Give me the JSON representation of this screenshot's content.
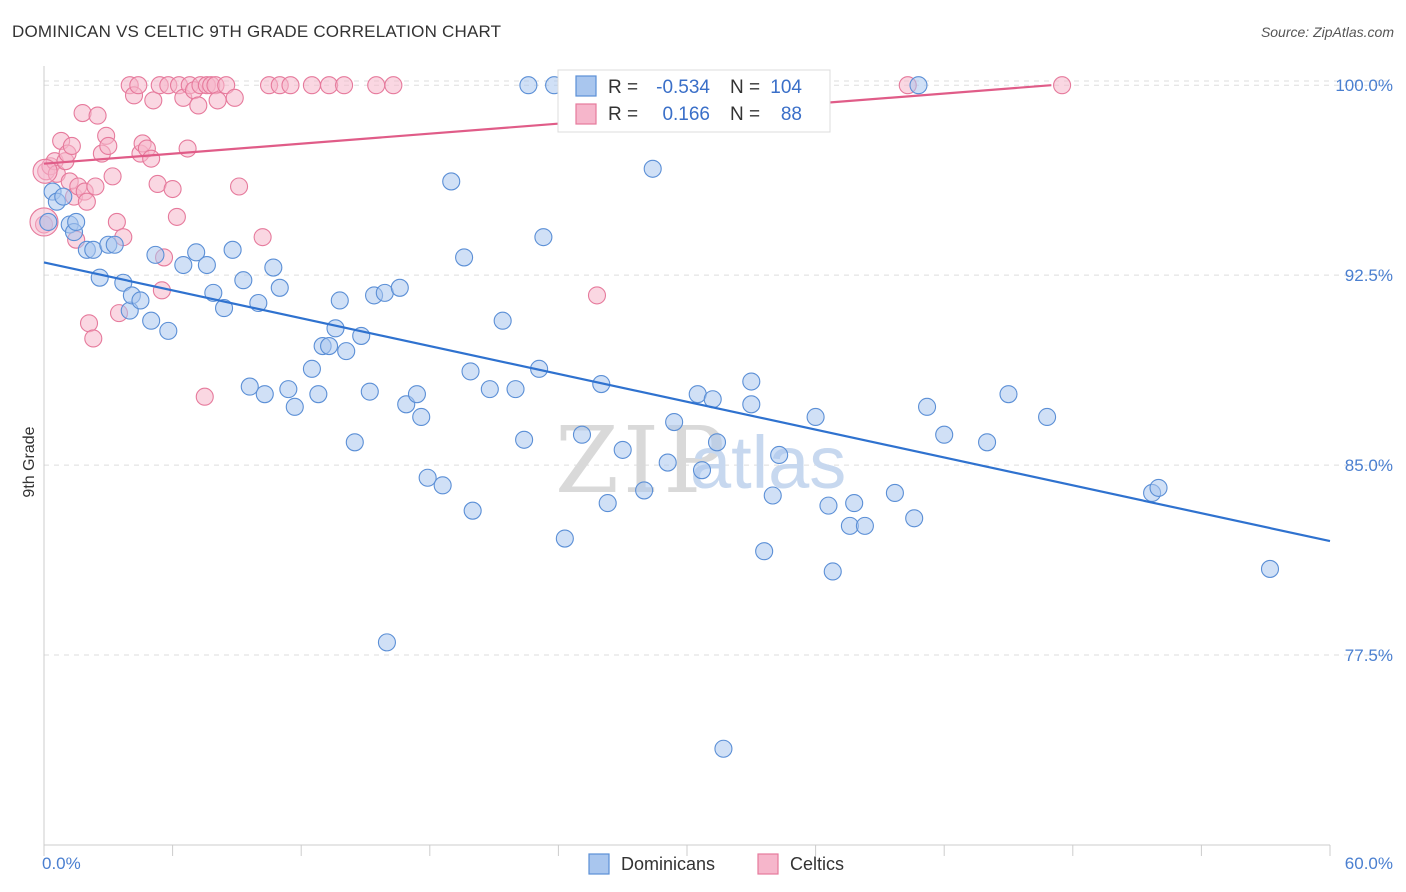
{
  "header": {
    "title": "DOMINICAN VS CELTIC 9TH GRADE CORRELATION CHART",
    "source": "Source: ZipAtlas.com"
  },
  "watermark": {
    "zip": "ZIP",
    "atlas": "atlas"
  },
  "legend_box": {
    "rows": [
      {
        "r_label": "R =",
        "r_value": "-0.534",
        "n_label": "N =",
        "n_value": "104"
      },
      {
        "r_label": "R =",
        "r_value": "0.166",
        "n_label": "N =",
        "n_value": "88"
      }
    ]
  },
  "bottom_legend": {
    "items": [
      "Dominicans",
      "Celtics"
    ]
  },
  "colors": {
    "blue_fill": "#a9c6ee",
    "blue_stroke": "#5b8fd6",
    "blue_line": "#2f72cf",
    "pink_fill": "#f6b6cb",
    "pink_stroke": "#e67a9c",
    "pink_line": "#e05c88",
    "grid": "#dddddd",
    "tick_text": "#4a7fd0"
  },
  "chart_data": {
    "type": "scatter",
    "title": "DOMINICAN VS CELTIC 9TH GRADE CORRELATION CHART",
    "xlabel": "",
    "ylabel": "9th Grade",
    "xlim": [
      0,
      60
    ],
    "ylim": [
      70,
      100.6
    ],
    "x_tick_labels": [
      "0.0%",
      "60.0%"
    ],
    "y_ticks": [
      77.5,
      85.0,
      92.5,
      100.0
    ],
    "y_tick_labels": [
      "77.5%",
      "85.0%",
      "92.5%",
      "100.0%"
    ],
    "grid": "horizontal dashed",
    "legend_position": "top-center",
    "series": [
      {
        "name": "Dominicans",
        "R": -0.534,
        "N": 104,
        "trend": {
          "x": [
            0,
            60
          ],
          "y": [
            93.0,
            82.0
          ]
        },
        "points": [
          [
            0.2,
            94.6
          ],
          [
            0.4,
            95.8
          ],
          [
            0.6,
            95.4
          ],
          [
            0.9,
            95.6
          ],
          [
            1.2,
            94.5
          ],
          [
            1.4,
            94.2
          ],
          [
            1.5,
            94.6
          ],
          [
            2.0,
            93.5
          ],
          [
            2.3,
            93.5
          ],
          [
            2.6,
            92.4
          ],
          [
            3.0,
            93.7
          ],
          [
            3.3,
            93.7
          ],
          [
            3.7,
            92.2
          ],
          [
            4.0,
            91.1
          ],
          [
            4.1,
            91.7
          ],
          [
            4.5,
            91.5
          ],
          [
            5.0,
            90.7
          ],
          [
            5.2,
            93.3
          ],
          [
            5.8,
            90.3
          ],
          [
            6.5,
            92.9
          ],
          [
            7.1,
            93.4
          ],
          [
            7.6,
            92.9
          ],
          [
            7.9,
            91.8
          ],
          [
            8.4,
            91.2
          ],
          [
            8.8,
            93.5
          ],
          [
            9.3,
            92.3
          ],
          [
            9.6,
            88.1
          ],
          [
            10.0,
            91.4
          ],
          [
            10.3,
            87.8
          ],
          [
            10.7,
            92.8
          ],
          [
            11.0,
            92.0
          ],
          [
            11.4,
            88.0
          ],
          [
            11.7,
            87.3
          ],
          [
            12.5,
            88.8
          ],
          [
            12.8,
            87.8
          ],
          [
            13.0,
            89.7
          ],
          [
            13.3,
            89.7
          ],
          [
            13.6,
            90.4
          ],
          [
            13.8,
            91.5
          ],
          [
            14.1,
            89.5
          ],
          [
            14.5,
            85.9
          ],
          [
            14.8,
            90.1
          ],
          [
            15.2,
            87.9
          ],
          [
            15.4,
            91.7
          ],
          [
            15.9,
            91.8
          ],
          [
            16.0,
            78.0
          ],
          [
            16.6,
            92.0
          ],
          [
            16.9,
            87.4
          ],
          [
            17.4,
            87.8
          ],
          [
            17.6,
            86.9
          ],
          [
            17.9,
            84.5
          ],
          [
            18.6,
            84.2
          ],
          [
            19.0,
            96.2
          ],
          [
            19.6,
            93.2
          ],
          [
            19.9,
            88.7
          ],
          [
            20.0,
            83.2
          ],
          [
            20.8,
            88.0
          ],
          [
            21.4,
            90.7
          ],
          [
            22.0,
            88.0
          ],
          [
            22.4,
            86.0
          ],
          [
            22.6,
            100.0
          ],
          [
            23.1,
            88.8
          ],
          [
            23.3,
            94.0
          ],
          [
            23.8,
            100.0
          ],
          [
            24.3,
            82.1
          ],
          [
            25.1,
            86.2
          ],
          [
            26.0,
            88.2
          ],
          [
            26.3,
            83.5
          ],
          [
            27.0,
            85.6
          ],
          [
            28.0,
            84.0
          ],
          [
            28.4,
            96.7
          ],
          [
            29.1,
            85.1
          ],
          [
            29.4,
            86.7
          ],
          [
            30.5,
            87.8
          ],
          [
            30.7,
            84.8
          ],
          [
            31.2,
            87.6
          ],
          [
            31.4,
            85.9
          ],
          [
            31.7,
            73.8
          ],
          [
            32.1,
            100.0
          ],
          [
            33.0,
            88.3
          ],
          [
            33.0,
            87.4
          ],
          [
            33.6,
            81.6
          ],
          [
            34.0,
            83.8
          ],
          [
            34.3,
            85.4
          ],
          [
            36.0,
            86.9
          ],
          [
            36.6,
            83.4
          ],
          [
            36.8,
            80.8
          ],
          [
            37.6,
            82.6
          ],
          [
            37.8,
            83.5
          ],
          [
            38.3,
            82.6
          ],
          [
            39.7,
            83.9
          ],
          [
            40.6,
            82.9
          ],
          [
            40.8,
            100.0
          ],
          [
            41.2,
            87.3
          ],
          [
            42.0,
            86.2
          ],
          [
            44.0,
            85.9
          ],
          [
            45.0,
            87.8
          ],
          [
            46.8,
            86.9
          ],
          [
            51.7,
            83.9
          ],
          [
            52.0,
            84.1
          ],
          [
            57.2,
            80.9
          ]
        ]
      },
      {
        "name": "Celtics",
        "R": 0.166,
        "N": 88,
        "trend": {
          "x": [
            0,
            47
          ],
          "y": [
            96.9,
            100.0
          ]
        },
        "points": [
          [
            0.0,
            94.5
          ],
          [
            0.1,
            96.6
          ],
          [
            0.3,
            96.8
          ],
          [
            0.5,
            97.0
          ],
          [
            0.6,
            96.5
          ],
          [
            0.8,
            97.8
          ],
          [
            1.0,
            97.0
          ],
          [
            1.2,
            96.2
          ],
          [
            1.1,
            97.3
          ],
          [
            1.3,
            97.6
          ],
          [
            1.4,
            95.6
          ],
          [
            1.5,
            93.9
          ],
          [
            1.6,
            96.0
          ],
          [
            1.8,
            98.9
          ],
          [
            1.9,
            95.8
          ],
          [
            2.0,
            95.4
          ],
          [
            2.1,
            90.6
          ],
          [
            2.3,
            90.0
          ],
          [
            2.4,
            96.0
          ],
          [
            2.5,
            98.8
          ],
          [
            2.7,
            97.3
          ],
          [
            2.9,
            98.0
          ],
          [
            3.0,
            97.6
          ],
          [
            3.2,
            96.4
          ],
          [
            3.4,
            94.6
          ],
          [
            3.5,
            91.0
          ],
          [
            3.7,
            94.0
          ],
          [
            4.0,
            100.0
          ],
          [
            4.2,
            99.6
          ],
          [
            4.4,
            100.0
          ],
          [
            4.5,
            97.3
          ],
          [
            4.6,
            97.7
          ],
          [
            4.8,
            97.5
          ],
          [
            5.0,
            97.1
          ],
          [
            5.1,
            99.4
          ],
          [
            5.3,
            96.1
          ],
          [
            5.4,
            100.0
          ],
          [
            5.5,
            91.9
          ],
          [
            5.6,
            93.2
          ],
          [
            5.8,
            100.0
          ],
          [
            6.0,
            95.9
          ],
          [
            6.2,
            94.8
          ],
          [
            6.3,
            100.0
          ],
          [
            6.5,
            99.5
          ],
          [
            6.7,
            97.5
          ],
          [
            6.8,
            100.0
          ],
          [
            7.0,
            99.8
          ],
          [
            7.2,
            99.2
          ],
          [
            7.3,
            100.0
          ],
          [
            7.5,
            87.7
          ],
          [
            7.6,
            100.0
          ],
          [
            7.8,
            100.0
          ],
          [
            8.0,
            100.0
          ],
          [
            8.1,
            99.4
          ],
          [
            8.5,
            100.0
          ],
          [
            8.9,
            99.5
          ],
          [
            9.1,
            96.0
          ],
          [
            10.2,
            94.0
          ],
          [
            10.5,
            100.0
          ],
          [
            11.0,
            100.0
          ],
          [
            11.5,
            100.0
          ],
          [
            12.5,
            100.0
          ],
          [
            13.3,
            100.0
          ],
          [
            14.0,
            100.0
          ],
          [
            15.5,
            100.0
          ],
          [
            16.3,
            100.0
          ],
          [
            25.8,
            91.7
          ],
          [
            40.3,
            100.0
          ],
          [
            47.5,
            100.0
          ]
        ]
      }
    ]
  }
}
